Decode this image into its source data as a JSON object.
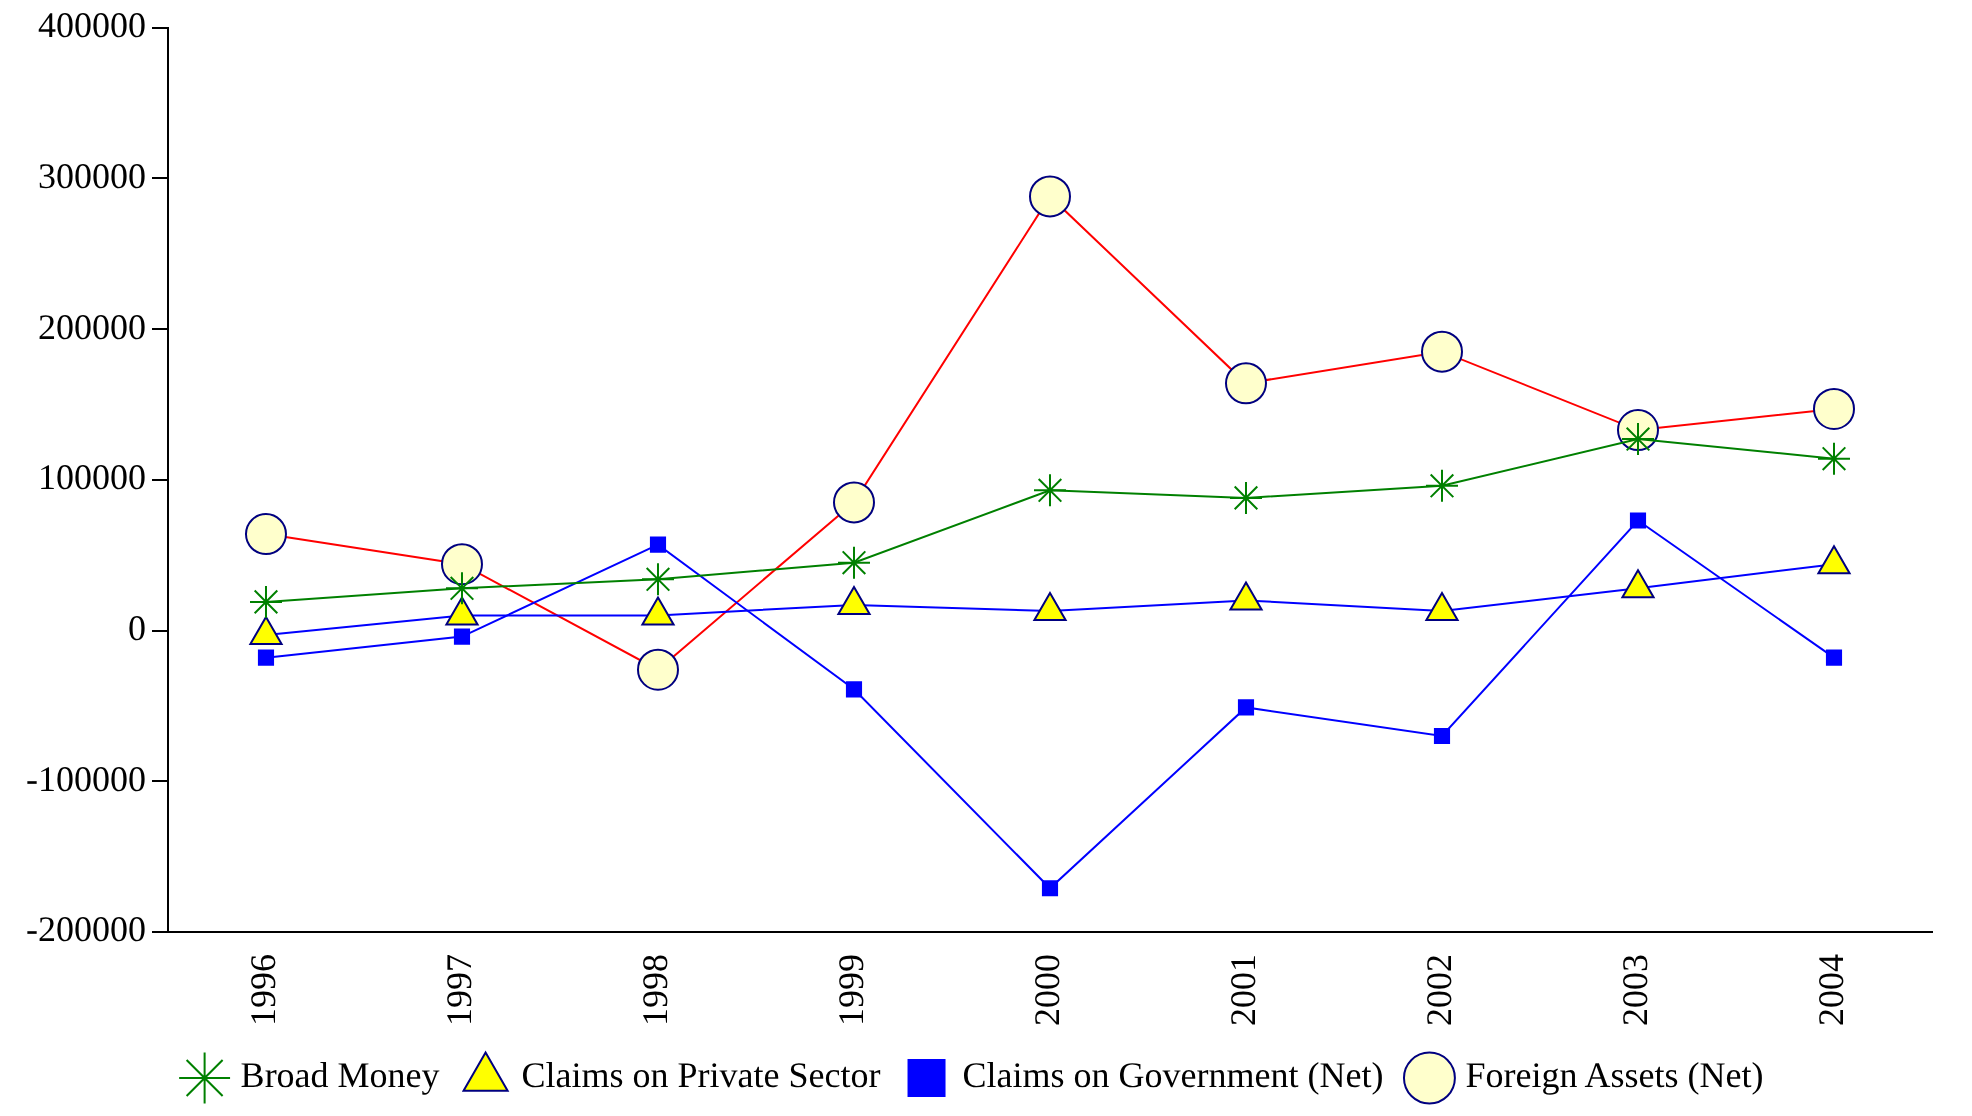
{
  "chart_data": {
    "type": "line",
    "categories": [
      "1996",
      "1997",
      "1998",
      "1999",
      "2000",
      "2001",
      "2002",
      "2003",
      "2004"
    ],
    "series": [
      {
        "name": "Foreign Assets (Net)",
        "color": "#ff0000",
        "marker": "circle",
        "values": [
          64000,
          44000,
          -26000,
          85000,
          288000,
          164000,
          185000,
          133000,
          147000
        ]
      },
      {
        "name": "Claims on Government (Net)",
        "color": "#0000ff",
        "marker": "square",
        "values": [
          -18000,
          -4000,
          57000,
          -39000,
          -171000,
          -51000,
          -70000,
          73000,
          -18000
        ]
      },
      {
        "name": "Claims on Private Sector",
        "color": "#0000ff",
        "marker": "triangle",
        "values": [
          -3000,
          10000,
          10000,
          17000,
          13000,
          20000,
          13000,
          28000,
          44000
        ]
      },
      {
        "name": "Broad Money",
        "color": "#008000",
        "marker": "cross",
        "values": [
          19000,
          28000,
          34000,
          45000,
          93000,
          88000,
          96000,
          127000,
          114000
        ]
      }
    ],
    "ylim": [
      -200000,
      400000
    ],
    "yticks": [
      -200000,
      -100000,
      0,
      100000,
      200000,
      300000,
      400000
    ],
    "grid": false,
    "legend": "bottom"
  }
}
